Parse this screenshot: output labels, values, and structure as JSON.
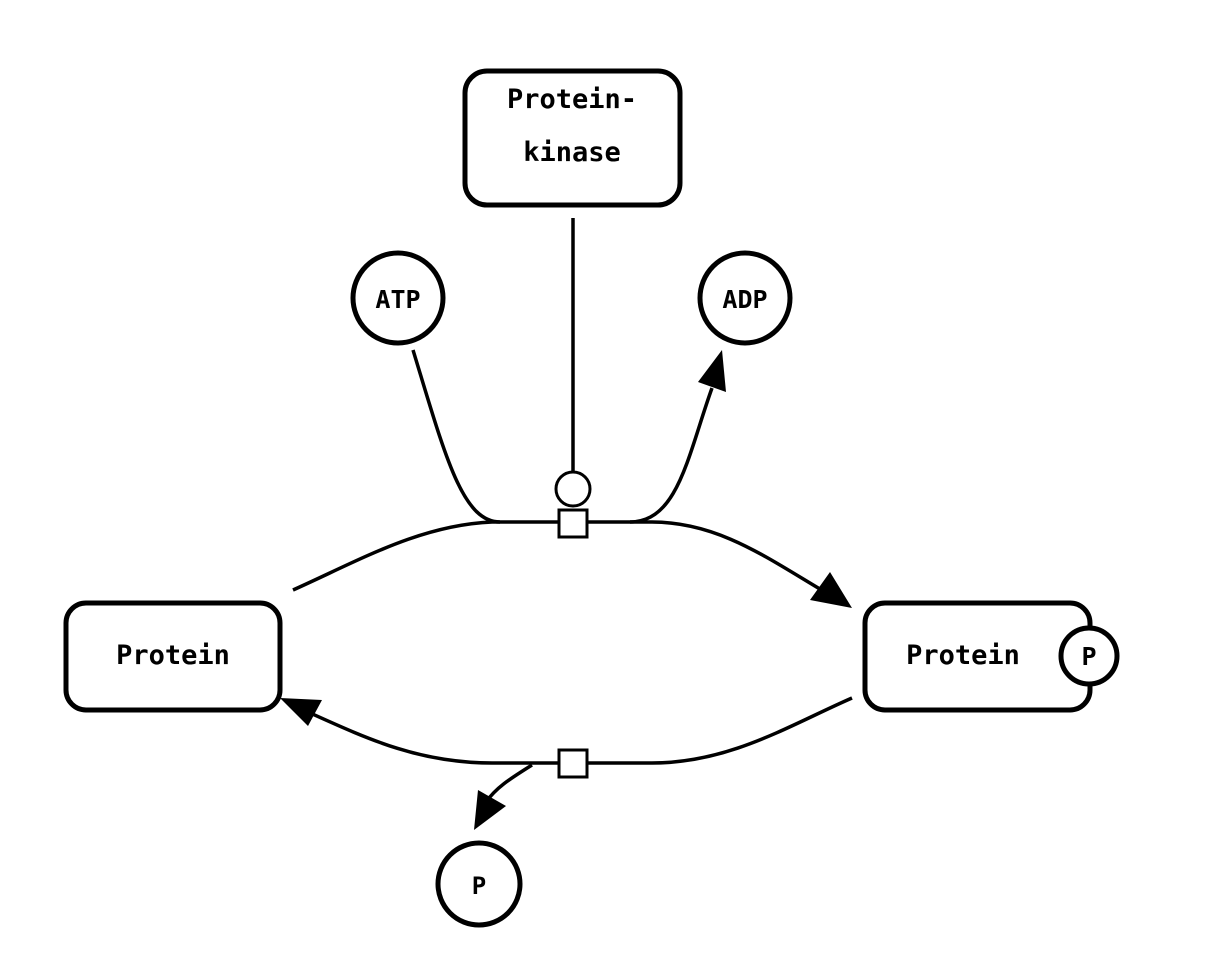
{
  "diagram": {
    "nodes": {
      "protein_kinase": {
        "line1": "Protein-",
        "line2": "kinase"
      },
      "atp": {
        "label": "ATP"
      },
      "adp": {
        "label": "ADP"
      },
      "protein": {
        "label": "Protein"
      },
      "protein_phospho": {
        "label": "Protein",
        "state": "P"
      },
      "phosphate": {
        "label": "P"
      }
    },
    "edges": [
      {
        "from": "Protein",
        "to": "Protein (P)",
        "type": "process",
        "consumes": "ATP",
        "produces": "ADP",
        "catalyst": "Protein-kinase"
      },
      {
        "from": "Protein (P)",
        "to": "Protein",
        "type": "process",
        "produces": "P"
      }
    ]
  }
}
